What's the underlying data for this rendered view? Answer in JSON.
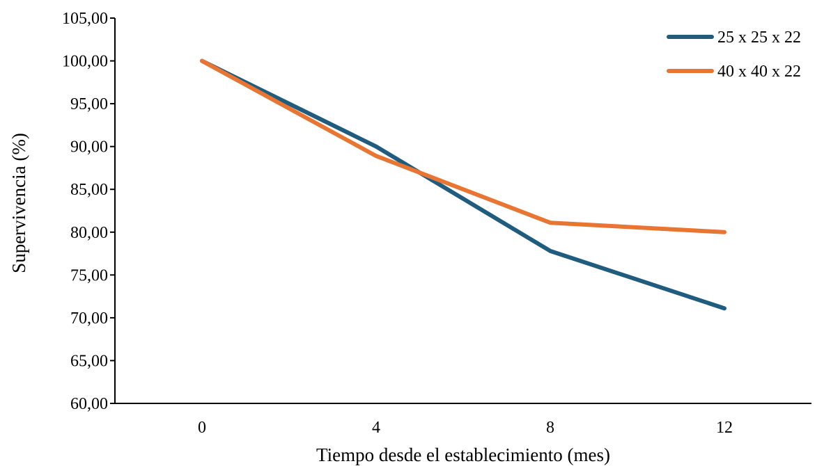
{
  "chart_data": {
    "type": "line",
    "title": "",
    "xlabel": "Tiempo desde el establecimiento (mes)",
    "ylabel": "Supervivencia (%)",
    "categories": [
      "0",
      "4",
      "8",
      "12"
    ],
    "x": [
      0,
      4,
      8,
      12
    ],
    "ylim": [
      60,
      105
    ],
    "y_ticks": [
      "60,00",
      "65,00",
      "70,00",
      "75,00",
      "80,00",
      "85,00",
      "90,00",
      "95,00",
      "100,00",
      "105,00"
    ],
    "grid": false,
    "legend_position": "top-right",
    "series": [
      {
        "name": "25 x 25 x 22",
        "color": "#1F5C7E",
        "values": [
          100.0,
          90.0,
          77.8,
          71.1
        ]
      },
      {
        "name": "40 x 40 x 22",
        "color": "#E97532",
        "values": [
          100.0,
          88.9,
          81.1,
          80.0
        ]
      }
    ]
  }
}
